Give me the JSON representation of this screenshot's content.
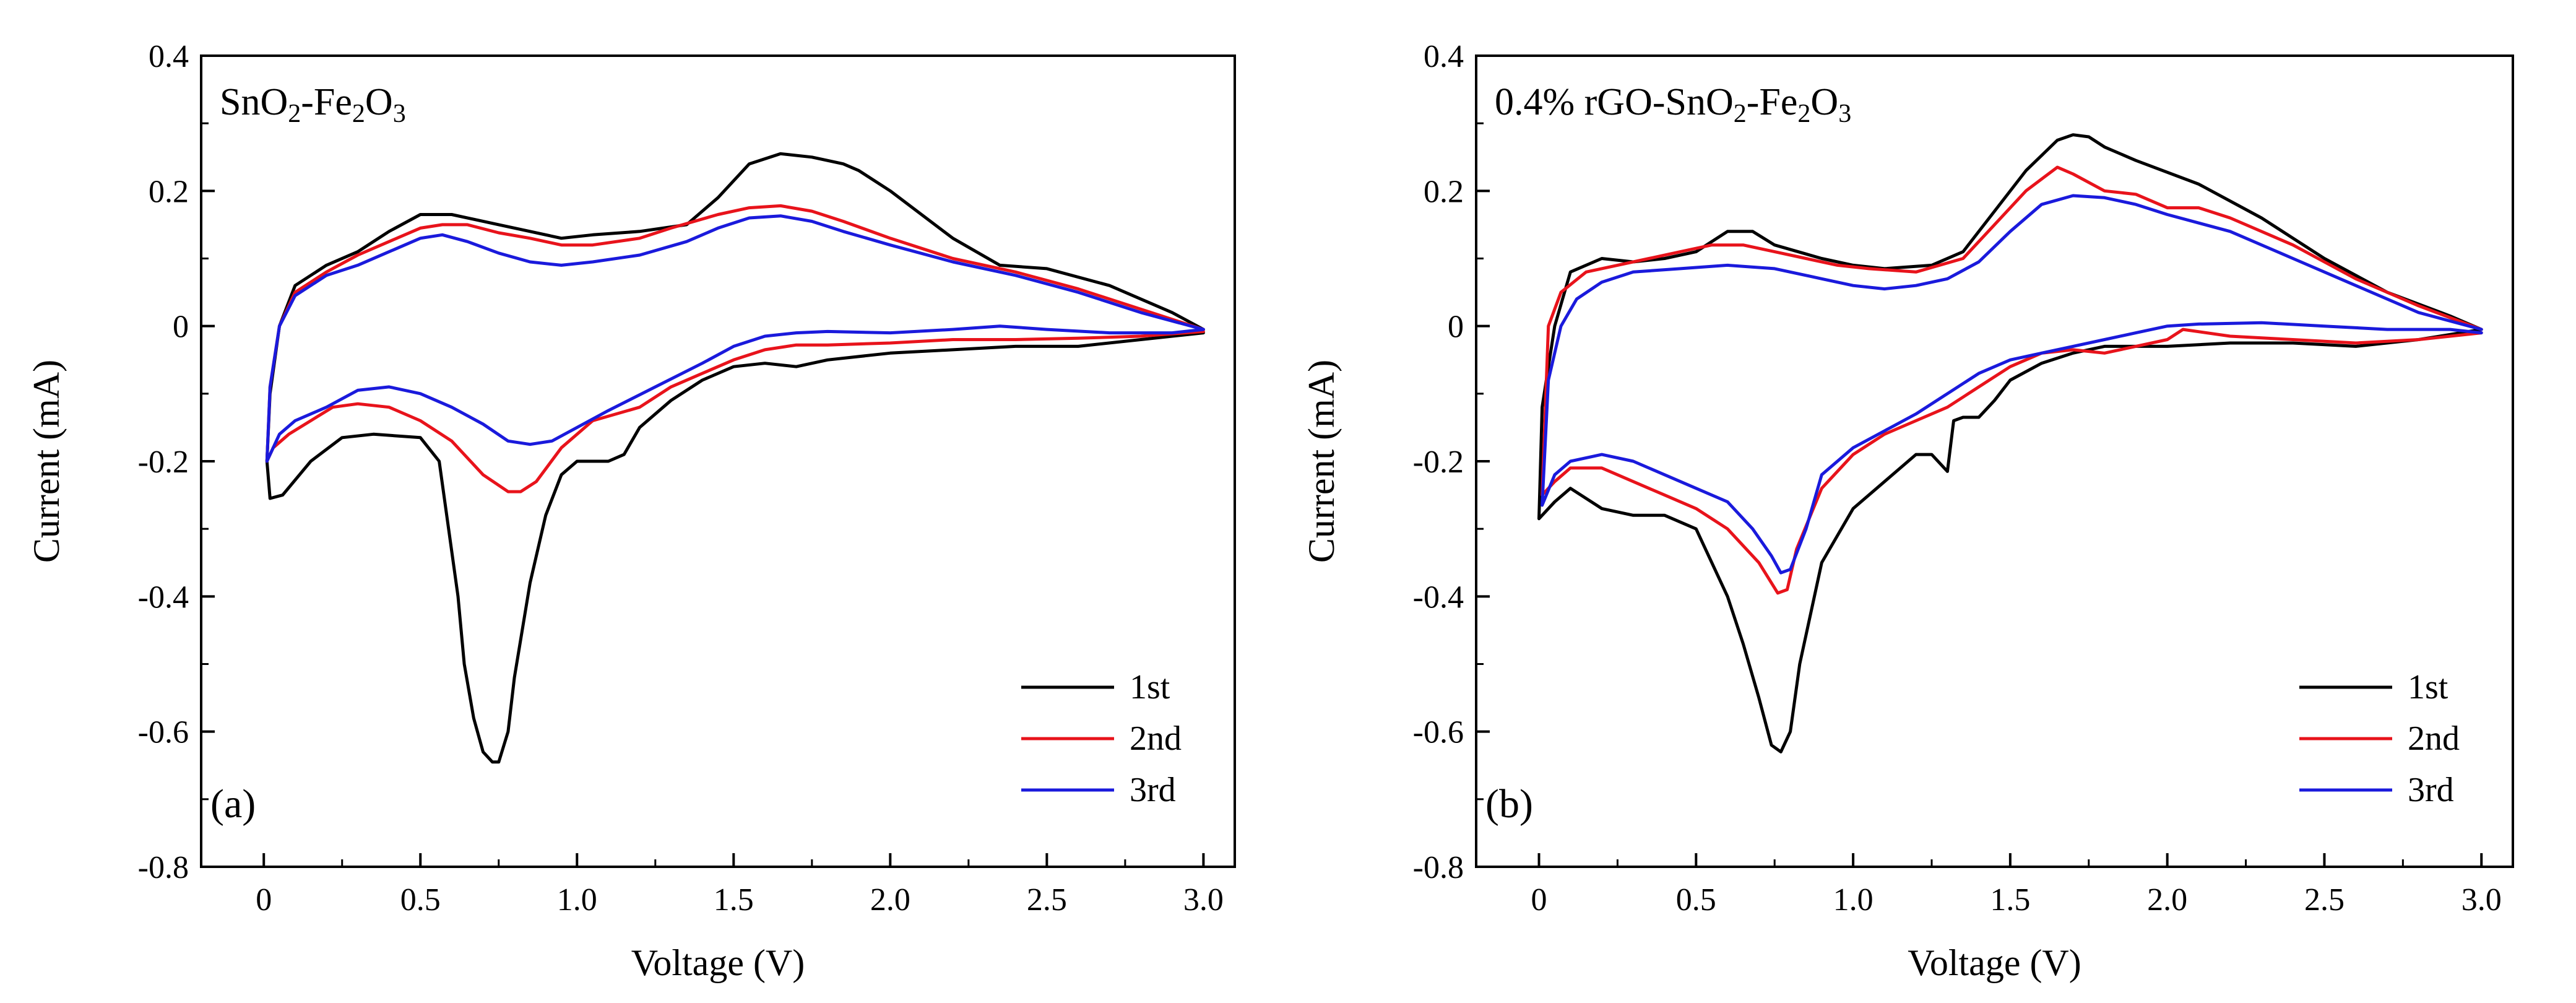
{
  "chart_data": [
    {
      "type": "line",
      "panel_label": "(a)",
      "title_parts": [
        [
          "SnO",
          ""
        ],
        [
          "2",
          "sub"
        ],
        [
          "-Fe",
          ""
        ],
        [
          "2",
          "sub"
        ],
        [
          "O",
          ""
        ],
        [
          "3",
          "sub"
        ]
      ],
      "xlabel": "Voltage (V)",
      "ylabel": "Current (mA)",
      "xlim": [
        -0.2,
        3.1
      ],
      "ylim": [
        -0.8,
        0.4
      ],
      "xticks": [
        0,
        0.5,
        1.0,
        1.5,
        2.0,
        2.5,
        3.0
      ],
      "xtick_labels": [
        "0",
        "0.5",
        "1.0",
        "1.5",
        "2.0",
        "2.5",
        "3.0"
      ],
      "yticks": [
        -0.8,
        -0.6,
        -0.4,
        -0.2,
        0,
        0.2,
        0.4
      ],
      "ytick_labels": [
        "-0.8",
        "-0.6",
        "-0.4",
        "-0.2",
        "0",
        "0.2",
        "0.4"
      ],
      "grid": false,
      "legend_position": "bottom-right",
      "series": [
        {
          "name": "1st",
          "color": "#000000",
          "x": [
            3.0,
            2.9,
            2.7,
            2.5,
            2.35,
            2.2,
            2.0,
            1.9,
            1.85,
            1.75,
            1.65,
            1.55,
            1.45,
            1.35,
            1.2,
            1.05,
            0.95,
            0.85,
            0.75,
            0.6,
            0.5,
            0.4,
            0.3,
            0.2,
            0.1,
            0.05,
            0.02,
            0.01,
            0.02,
            0.06,
            0.15,
            0.25,
            0.35,
            0.5,
            0.56,
            0.59,
            0.62,
            0.64,
            0.67,
            0.7,
            0.73,
            0.75,
            0.78,
            0.8,
            0.85,
            0.9,
            0.95,
            1.0,
            1.1,
            1.15,
            1.2,
            1.3,
            1.4,
            1.5,
            1.6,
            1.7,
            1.8,
            2.0,
            2.2,
            2.4,
            2.6,
            2.8,
            3.0
          ],
          "y": [
            -0.005,
            0.02,
            0.06,
            0.085,
            0.09,
            0.13,
            0.2,
            0.23,
            0.24,
            0.25,
            0.255,
            0.24,
            0.19,
            0.15,
            0.14,
            0.135,
            0.13,
            0.14,
            0.15,
            0.165,
            0.165,
            0.14,
            0.11,
            0.09,
            0.06,
            0.0,
            -0.1,
            -0.2,
            -0.255,
            -0.25,
            -0.2,
            -0.165,
            -0.16,
            -0.165,
            -0.2,
            -0.3,
            -0.4,
            -0.5,
            -0.58,
            -0.63,
            -0.645,
            -0.645,
            -0.6,
            -0.52,
            -0.38,
            -0.28,
            -0.22,
            -0.2,
            -0.2,
            -0.19,
            -0.15,
            -0.11,
            -0.08,
            -0.06,
            -0.055,
            -0.06,
            -0.05,
            -0.04,
            -0.035,
            -0.03,
            -0.03,
            -0.02,
            -0.01
          ]
        },
        {
          "name": "2nd",
          "color": "#e8131b",
          "x": [
            3.0,
            2.8,
            2.6,
            2.4,
            2.2,
            2.0,
            1.85,
            1.75,
            1.65,
            1.55,
            1.45,
            1.3,
            1.2,
            1.05,
            0.95,
            0.85,
            0.75,
            0.65,
            0.57,
            0.5,
            0.4,
            0.3,
            0.2,
            0.1,
            0.05,
            0.02,
            0.01,
            0.03,
            0.08,
            0.15,
            0.22,
            0.3,
            0.4,
            0.5,
            0.6,
            0.7,
            0.78,
            0.82,
            0.87,
            0.95,
            1.05,
            1.2,
            1.3,
            1.4,
            1.5,
            1.6,
            1.7,
            1.8,
            2.0,
            2.2,
            2.4,
            2.6,
            2.8,
            3.0
          ],
          "y": [
            -0.005,
            0.025,
            0.055,
            0.08,
            0.1,
            0.13,
            0.155,
            0.17,
            0.178,
            0.175,
            0.165,
            0.145,
            0.13,
            0.12,
            0.12,
            0.13,
            0.138,
            0.15,
            0.15,
            0.145,
            0.125,
            0.105,
            0.08,
            0.05,
            0.0,
            -0.09,
            -0.2,
            -0.18,
            -0.16,
            -0.14,
            -0.12,
            -0.115,
            -0.12,
            -0.14,
            -0.17,
            -0.22,
            -0.245,
            -0.245,
            -0.23,
            -0.18,
            -0.14,
            -0.12,
            -0.09,
            -0.07,
            -0.05,
            -0.035,
            -0.028,
            -0.028,
            -0.025,
            -0.02,
            -0.02,
            -0.018,
            -0.015,
            -0.008
          ]
        },
        {
          "name": "3rd",
          "color": "#1a1adc",
          "x": [
            3.0,
            2.8,
            2.6,
            2.4,
            2.2,
            2.0,
            1.85,
            1.75,
            1.65,
            1.55,
            1.45,
            1.35,
            1.2,
            1.05,
            0.95,
            0.85,
            0.75,
            0.65,
            0.57,
            0.5,
            0.4,
            0.3,
            0.2,
            0.1,
            0.05,
            0.02,
            0.01,
            0.05,
            0.1,
            0.2,
            0.3,
            0.4,
            0.5,
            0.6,
            0.7,
            0.78,
            0.85,
            0.92,
            1.0,
            1.1,
            1.25,
            1.4,
            1.5,
            1.6,
            1.7,
            1.8,
            2.0,
            2.2,
            2.35,
            2.5,
            2.7,
            2.9,
            3.0
          ],
          "y": [
            -0.005,
            0.02,
            0.05,
            0.075,
            0.095,
            0.12,
            0.14,
            0.155,
            0.163,
            0.16,
            0.145,
            0.125,
            0.105,
            0.095,
            0.09,
            0.095,
            0.108,
            0.125,
            0.135,
            0.13,
            0.11,
            0.09,
            0.075,
            0.045,
            0.0,
            -0.09,
            -0.2,
            -0.16,
            -0.14,
            -0.12,
            -0.095,
            -0.09,
            -0.1,
            -0.12,
            -0.145,
            -0.17,
            -0.175,
            -0.17,
            -0.15,
            -0.125,
            -0.09,
            -0.055,
            -0.03,
            -0.015,
            -0.01,
            -0.008,
            -0.01,
            -0.005,
            0.0,
            -0.005,
            -0.01,
            -0.01,
            -0.005
          ]
        }
      ]
    },
    {
      "type": "line",
      "panel_label": "(b)",
      "title_parts": [
        [
          "0.4% rGO-SnO",
          ""
        ],
        [
          "2",
          "sub"
        ],
        [
          "-Fe",
          ""
        ],
        [
          "2",
          "sub"
        ],
        [
          "O",
          ""
        ],
        [
          "3",
          "sub"
        ]
      ],
      "xlabel": "Voltage (V)",
      "ylabel": "Current (mA)",
      "xlim": [
        -0.2,
        3.1
      ],
      "ylim": [
        -0.8,
        0.4
      ],
      "xticks": [
        0,
        0.5,
        1.0,
        1.5,
        2.0,
        2.5,
        3.0
      ],
      "xtick_labels": [
        "0",
        "0.5",
        "1.0",
        "1.5",
        "2.0",
        "2.5",
        "3.0"
      ],
      "yticks": [
        -0.8,
        -0.6,
        -0.4,
        -0.2,
        0,
        0.2,
        0.4
      ],
      "ytick_labels": [
        "-0.8",
        "-0.6",
        "-0.4",
        "-0.2",
        "0",
        "0.2",
        "0.4"
      ],
      "grid": false,
      "legend_position": "bottom-right",
      "series": [
        {
          "name": "1st",
          "color": "#000000",
          "x": [
            3.0,
            2.9,
            2.7,
            2.5,
            2.3,
            2.1,
            1.9,
            1.8,
            1.75,
            1.7,
            1.65,
            1.55,
            1.45,
            1.35,
            1.25,
            1.1,
            1.0,
            0.9,
            0.75,
            0.68,
            0.6,
            0.5,
            0.4,
            0.3,
            0.2,
            0.1,
            0.05,
            0.01,
            0.0,
            0.05,
            0.1,
            0.2,
            0.3,
            0.4,
            0.5,
            0.6,
            0.65,
            0.7,
            0.74,
            0.77,
            0.8,
            0.83,
            0.9,
            1.0,
            1.1,
            1.2,
            1.25,
            1.3,
            1.32,
            1.35,
            1.4,
            1.45,
            1.5,
            1.6,
            1.7,
            1.8,
            2.0,
            2.2,
            2.4,
            2.6,
            2.8,
            3.0
          ],
          "y": [
            -0.005,
            0.015,
            0.05,
            0.1,
            0.16,
            0.21,
            0.245,
            0.265,
            0.28,
            0.283,
            0.275,
            0.23,
            0.17,
            0.11,
            0.09,
            0.085,
            0.09,
            0.1,
            0.12,
            0.14,
            0.14,
            0.11,
            0.1,
            0.095,
            0.1,
            0.08,
            0.0,
            -0.12,
            -0.285,
            -0.26,
            -0.24,
            -0.27,
            -0.28,
            -0.28,
            -0.3,
            -0.4,
            -0.47,
            -0.55,
            -0.62,
            -0.63,
            -0.6,
            -0.5,
            -0.35,
            -0.27,
            -0.23,
            -0.19,
            -0.19,
            -0.215,
            -0.14,
            -0.135,
            -0.135,
            -0.11,
            -0.08,
            -0.055,
            -0.04,
            -0.03,
            -0.03,
            -0.025,
            -0.025,
            -0.03,
            -0.02,
            -0.005
          ]
        },
        {
          "name": "2nd",
          "color": "#e8131b",
          "x": [
            3.0,
            2.8,
            2.6,
            2.4,
            2.2,
            2.1,
            2.0,
            1.9,
            1.8,
            1.7,
            1.65,
            1.55,
            1.45,
            1.35,
            1.2,
            1.05,
            0.95,
            0.85,
            0.75,
            0.65,
            0.55,
            0.45,
            0.35,
            0.25,
            0.15,
            0.07,
            0.03,
            0.01,
            0.05,
            0.1,
            0.2,
            0.3,
            0.4,
            0.5,
            0.6,
            0.7,
            0.76,
            0.79,
            0.82,
            0.9,
            1.0,
            1.1,
            1.2,
            1.3,
            1.4,
            1.5,
            1.6,
            1.7,
            1.8,
            1.9,
            2.0,
            2.05,
            2.2,
            2.4,
            2.6,
            2.8,
            3.0
          ],
          "y": [
            -0.005,
            0.03,
            0.07,
            0.12,
            0.16,
            0.175,
            0.175,
            0.195,
            0.2,
            0.225,
            0.235,
            0.2,
            0.15,
            0.1,
            0.08,
            0.085,
            0.09,
            0.1,
            0.11,
            0.12,
            0.12,
            0.11,
            0.1,
            0.09,
            0.08,
            0.05,
            0.0,
            -0.25,
            -0.23,
            -0.21,
            -0.21,
            -0.23,
            -0.25,
            -0.27,
            -0.3,
            -0.35,
            -0.395,
            -0.39,
            -0.33,
            -0.24,
            -0.19,
            -0.16,
            -0.14,
            -0.12,
            -0.09,
            -0.06,
            -0.04,
            -0.035,
            -0.04,
            -0.03,
            -0.02,
            -0.005,
            -0.015,
            -0.02,
            -0.025,
            -0.02,
            -0.01
          ]
        },
        {
          "name": "3rd",
          "color": "#1a1adc",
          "x": [
            3.0,
            2.8,
            2.6,
            2.4,
            2.2,
            2.0,
            1.9,
            1.8,
            1.7,
            1.6,
            1.5,
            1.4,
            1.3,
            1.2,
            1.1,
            1.0,
            0.9,
            0.75,
            0.6,
            0.45,
            0.3,
            0.2,
            0.12,
            0.07,
            0.03,
            0.01,
            0.05,
            0.1,
            0.2,
            0.3,
            0.4,
            0.5,
            0.6,
            0.68,
            0.74,
            0.77,
            0.8,
            0.85,
            0.9,
            1.0,
            1.1,
            1.2,
            1.3,
            1.4,
            1.5,
            1.6,
            1.7,
            1.8,
            1.9,
            2.0,
            2.1,
            2.3,
            2.5,
            2.7,
            2.9,
            3.0
          ],
          "y": [
            -0.005,
            0.02,
            0.06,
            0.1,
            0.14,
            0.165,
            0.18,
            0.19,
            0.193,
            0.18,
            0.14,
            0.095,
            0.07,
            0.06,
            0.055,
            0.06,
            0.07,
            0.085,
            0.09,
            0.085,
            0.08,
            0.065,
            0.04,
            0.0,
            -0.08,
            -0.265,
            -0.22,
            -0.2,
            -0.19,
            -0.2,
            -0.22,
            -0.24,
            -0.26,
            -0.3,
            -0.34,
            -0.365,
            -0.36,
            -0.3,
            -0.22,
            -0.18,
            -0.155,
            -0.13,
            -0.1,
            -0.07,
            -0.05,
            -0.04,
            -0.03,
            -0.02,
            -0.01,
            0.0,
            0.003,
            0.005,
            0.0,
            -0.005,
            -0.005,
            -0.01
          ]
        }
      ]
    }
  ]
}
